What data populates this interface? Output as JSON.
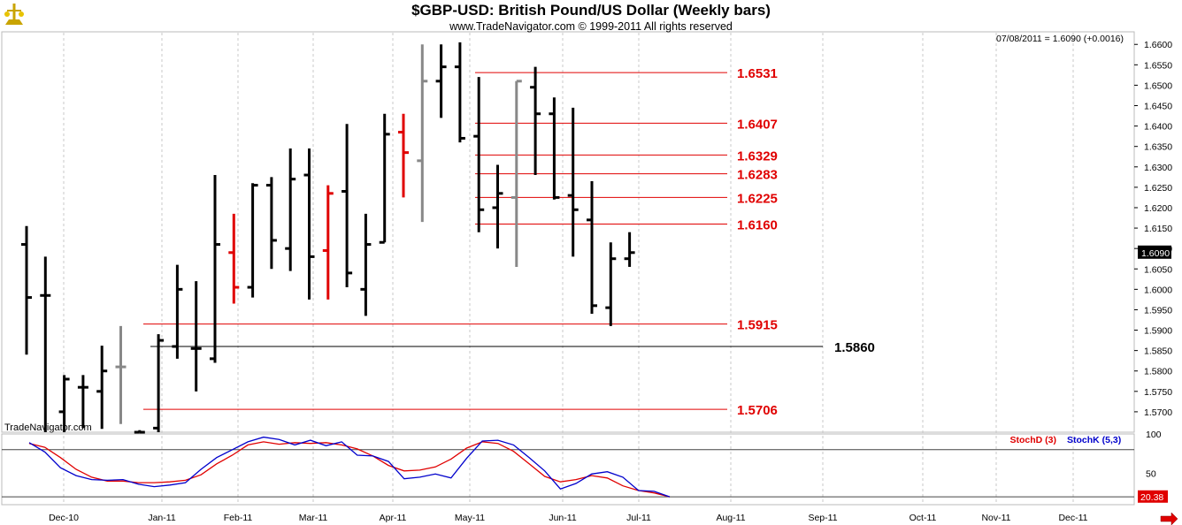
{
  "header": {
    "title": "$GBP-USD:  British Pound/US Dollar  (Weekly bars)",
    "copyright": "www.TradeNavigator.com © 1999-2011 All rights reserved",
    "last_quote": "07/08/2011 = 1.6090 (+0.0016)",
    "watermark": "TradeNavigator.com"
  },
  "colors": {
    "up_bar": "#000000",
    "neutral_bar": "#888888",
    "highlight_bar": "#e00000",
    "level_line": "#e00000",
    "support_line": "#000000",
    "stoch_d": "#e00000",
    "stoch_k": "#0000cc"
  },
  "chart_data": [
    {
      "type": "bar",
      "subtype": "ohlc",
      "title": "$GBP-USD:  British Pound/US Dollar  (Weekly bars)",
      "ylim": [
        1.565,
        1.662
      ],
      "y_ticks": [
        "1.6600",
        "1.6550",
        "1.6500",
        "1.6450",
        "1.6400",
        "1.6350",
        "1.6300",
        "1.6250",
        "1.6200",
        "1.6150",
        "1.6100",
        "1.6050",
        "1.6000",
        "1.5950",
        "1.5900",
        "1.5850",
        "1.5800",
        "1.5750",
        "1.5700"
      ],
      "x_ticks": [
        "Dec-10",
        "Jan-11",
        "Feb-11",
        "Mar-11",
        "Apr-11",
        "May-11",
        "Jun-11",
        "Jul-11",
        "Aug-11",
        "Sep-11",
        "Oct-11",
        "Nov-11",
        "Dec-11"
      ],
      "last_price_label": "1.6090",
      "bars": [
        {
          "o": 1.611,
          "h": 1.6155,
          "l": 1.584,
          "c": 1.598,
          "color": "black"
        },
        {
          "o": 1.5985,
          "h": 1.608,
          "l": 1.565,
          "c": 1.5985,
          "color": "black"
        },
        {
          "o": 1.57,
          "h": 1.579,
          "l": 1.565,
          "c": 1.578,
          "color": "black"
        },
        {
          "o": 1.576,
          "h": 1.579,
          "l": 1.566,
          "c": 1.576,
          "color": "black"
        },
        {
          "o": 1.575,
          "h": 1.5862,
          "l": 1.5658,
          "c": 1.58,
          "color": "black"
        },
        {
          "o": 1.581,
          "h": 1.591,
          "l": 1.567,
          "c": 1.581,
          "color": "gray"
        },
        {
          "o": 1.565,
          "h": 1.5655,
          "l": 1.5645,
          "c": 1.565,
          "color": "black"
        },
        {
          "o": 1.566,
          "h": 1.589,
          "l": 1.565,
          "c": 1.5875,
          "color": "black"
        },
        {
          "o": 1.586,
          "h": 1.606,
          "l": 1.583,
          "c": 1.6,
          "color": "black"
        },
        {
          "o": 1.5855,
          "h": 1.602,
          "l": 1.575,
          "c": 1.5855,
          "color": "black"
        },
        {
          "o": 1.583,
          "h": 1.628,
          "l": 1.582,
          "c": 1.611,
          "color": "black"
        },
        {
          "o": 1.609,
          "h": 1.6185,
          "l": 1.5965,
          "c": 1.6005,
          "color": "red"
        },
        {
          "o": 1.6005,
          "h": 1.626,
          "l": 1.598,
          "c": 1.6255,
          "color": "black"
        },
        {
          "o": 1.6255,
          "h": 1.6275,
          "l": 1.605,
          "c": 1.612,
          "color": "black"
        },
        {
          "o": 1.61,
          "h": 1.6345,
          "l": 1.6045,
          "c": 1.627,
          "color": "black"
        },
        {
          "o": 1.628,
          "h": 1.6345,
          "l": 1.5975,
          "c": 1.608,
          "color": "black"
        },
        {
          "o": 1.6095,
          "h": 1.6255,
          "l": 1.5975,
          "c": 1.6235,
          "color": "red"
        },
        {
          "o": 1.624,
          "h": 1.6405,
          "l": 1.6005,
          "c": 1.604,
          "color": "black"
        },
        {
          "o": 1.6,
          "h": 1.6185,
          "l": 1.5935,
          "c": 1.611,
          "color": "black"
        },
        {
          "o": 1.6115,
          "h": 1.643,
          "l": 1.6115,
          "c": 1.638,
          "color": "black"
        },
        {
          "o": 1.6385,
          "h": 1.643,
          "l": 1.6225,
          "c": 1.6335,
          "color": "red"
        },
        {
          "o": 1.6315,
          "h": 1.66,
          "l": 1.6165,
          "c": 1.651,
          "color": "gray"
        },
        {
          "o": 1.651,
          "h": 1.66,
          "l": 1.642,
          "c": 1.6545,
          "color": "black"
        },
        {
          "o": 1.6545,
          "h": 1.6605,
          "l": 1.636,
          "c": 1.637,
          "color": "black"
        },
        {
          "o": 1.6375,
          "h": 1.652,
          "l": 1.614,
          "c": 1.6195,
          "color": "black"
        },
        {
          "o": 1.62,
          "h": 1.6305,
          "l": 1.61,
          "c": 1.6235,
          "color": "black"
        },
        {
          "o": 1.6225,
          "h": 1.651,
          "l": 1.6055,
          "c": 1.651,
          "color": "gray"
        },
        {
          "o": 1.6495,
          "h": 1.6545,
          "l": 1.628,
          "c": 1.643,
          "color": "black"
        },
        {
          "o": 1.643,
          "h": 1.647,
          "l": 1.622,
          "c": 1.6225,
          "color": "black"
        },
        {
          "o": 1.623,
          "h": 1.6445,
          "l": 1.608,
          "c": 1.6195,
          "color": "black"
        },
        {
          "o": 1.617,
          "h": 1.6265,
          "l": 1.594,
          "c": 1.596,
          "color": "black"
        },
        {
          "o": 1.5955,
          "h": 1.6115,
          "l": 1.591,
          "c": 1.6075,
          "color": "black"
        },
        {
          "o": 1.6075,
          "h": 1.614,
          "l": 1.6055,
          "c": 1.609,
          "color": "black"
        }
      ],
      "levels": [
        {
          "value": 1.6531,
          "label": "1.6531",
          "color": "red"
        },
        {
          "value": 1.6407,
          "label": "1.6407",
          "color": "red"
        },
        {
          "value": 1.6329,
          "label": "1.6329",
          "color": "red"
        },
        {
          "value": 1.6283,
          "label": "1.6283",
          "color": "red"
        },
        {
          "value": 1.6225,
          "label": "1.6225",
          "color": "red"
        },
        {
          "value": 1.616,
          "label": "1.6160",
          "color": "red"
        },
        {
          "value": 1.5915,
          "label": "1.5915",
          "color": "red"
        },
        {
          "value": 1.586,
          "label": "1.5860",
          "color": "black"
        },
        {
          "value": 1.5706,
          "label": "1.5706",
          "color": "red"
        }
      ]
    },
    {
      "type": "line",
      "title": "",
      "ylim": [
        10,
        100
      ],
      "y_ticks": [
        "100",
        "50"
      ],
      "last_value_label": "20.38",
      "reference_lines": [
        80,
        20
      ],
      "legend": "top-right",
      "series": [
        {
          "name": "StochD (3)",
          "color": "red",
          "values": [
            88,
            83,
            70,
            55,
            45,
            40,
            40,
            38,
            38,
            39,
            41,
            48,
            62,
            73,
            86,
            90,
            87,
            89,
            88,
            89,
            86,
            81,
            72,
            60,
            53,
            54,
            58,
            68,
            82,
            90,
            88,
            78,
            62,
            46,
            39,
            42,
            47,
            44,
            34,
            28,
            25,
            20
          ]
        },
        {
          "name": "StochK (5,3)",
          "color": "blue",
          "values": [
            89,
            77,
            57,
            47,
            42,
            41,
            42,
            36,
            33,
            35,
            38,
            55,
            70,
            80,
            90,
            96,
            93,
            86,
            92,
            85,
            90,
            73,
            72,
            65,
            43,
            45,
            49,
            44,
            69,
            91,
            92,
            86,
            70,
            53,
            30,
            37,
            49,
            52,
            45,
            28,
            27,
            20
          ]
        }
      ]
    }
  ]
}
